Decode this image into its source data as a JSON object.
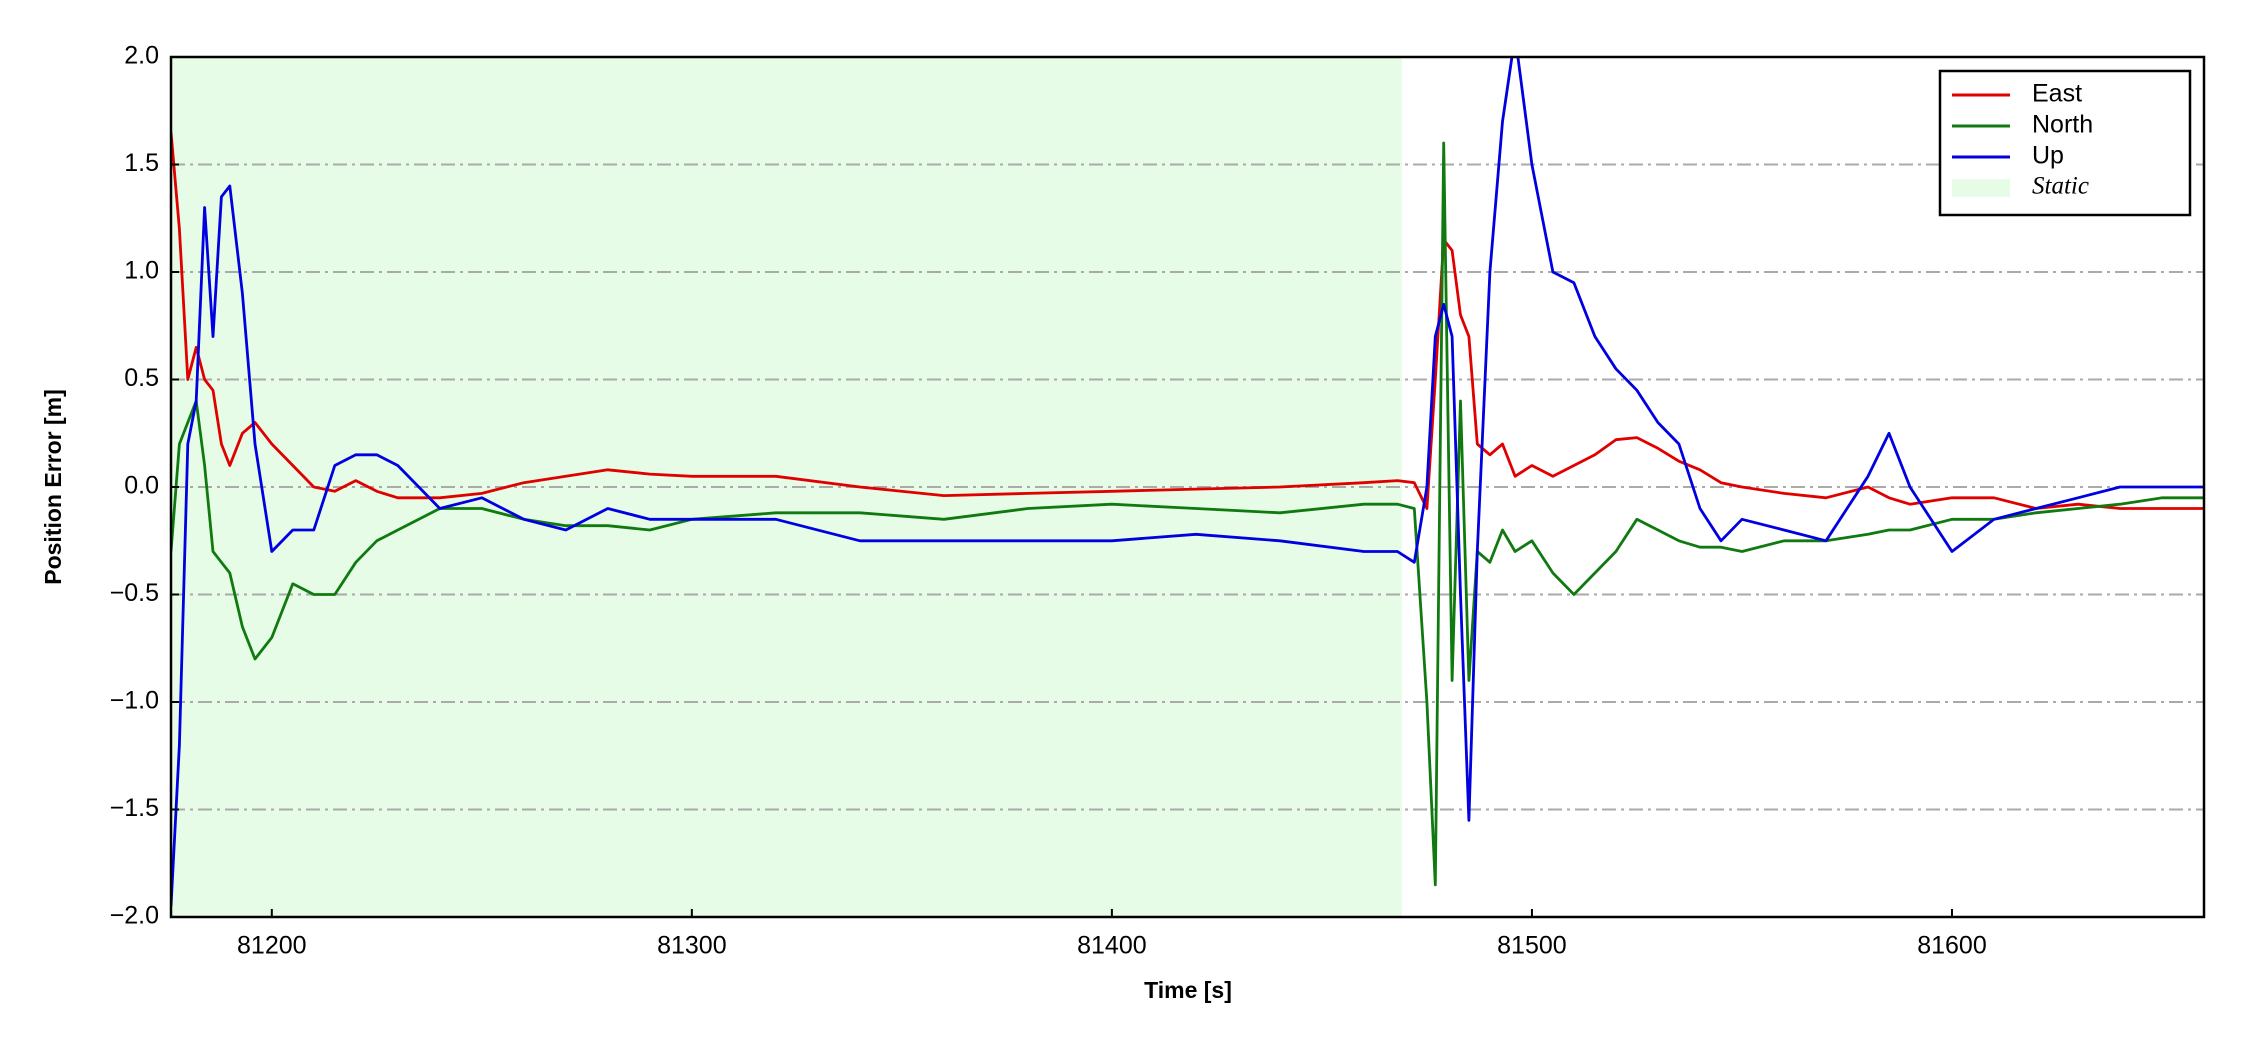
{
  "chart_data": {
    "type": "line",
    "xlabel": "Time [s]",
    "ylabel": "Position Error [m]",
    "x": [
      81176,
      81178,
      81180,
      81182,
      81184,
      81186,
      81188,
      81190,
      81193,
      81196,
      81200,
      81205,
      81210,
      81215,
      81220,
      81225,
      81230,
      81240,
      81250,
      81260,
      81270,
      81280,
      81290,
      81300,
      81320,
      81340,
      81360,
      81380,
      81400,
      81420,
      81440,
      81460,
      81468,
      81472,
      81475,
      81477,
      81479,
      81481,
      81483,
      81485,
      81487,
      81490,
      81493,
      81496,
      81500,
      81505,
      81510,
      81515,
      81520,
      81525,
      81530,
      81535,
      81540,
      81545,
      81550,
      81560,
      81570,
      81580,
      81585,
      81590,
      81600,
      81610,
      81620,
      81630,
      81640,
      81650,
      81660
    ],
    "series": [
      {
        "name": "East",
        "color": "#e00000",
        "values": [
          1.65,
          1.2,
          0.5,
          0.65,
          0.5,
          0.45,
          0.2,
          0.1,
          0.25,
          0.3,
          0.2,
          0.1,
          0.0,
          -0.02,
          0.03,
          -0.02,
          -0.05,
          -0.05,
          -0.03,
          0.02,
          0.05,
          0.08,
          0.06,
          0.05,
          0.05,
          0.0,
          -0.04,
          -0.03,
          -0.02,
          -0.01,
          0.0,
          0.02,
          0.03,
          0.02,
          -0.1,
          0.5,
          1.15,
          1.1,
          0.8,
          0.7,
          0.2,
          0.15,
          0.2,
          0.05,
          0.1,
          0.05,
          0.1,
          0.15,
          0.22,
          0.23,
          0.18,
          0.12,
          0.08,
          0.02,
          0.0,
          -0.03,
          -0.05,
          0.0,
          -0.05,
          -0.08,
          -0.05,
          -0.05,
          -0.1,
          -0.08,
          -0.1,
          -0.1,
          -0.1
        ]
      },
      {
        "name": "North",
        "color": "#107a10",
        "values": [
          -0.3,
          0.2,
          0.3,
          0.4,
          0.1,
          -0.3,
          -0.35,
          -0.4,
          -0.65,
          -0.8,
          -0.7,
          -0.45,
          -0.5,
          -0.5,
          -0.35,
          -0.25,
          -0.2,
          -0.1,
          -0.1,
          -0.15,
          -0.18,
          -0.18,
          -0.2,
          -0.15,
          -0.12,
          -0.12,
          -0.15,
          -0.1,
          -0.08,
          -0.1,
          -0.12,
          -0.08,
          -0.08,
          -0.1,
          -1.0,
          -1.85,
          1.6,
          -0.9,
          0.4,
          -0.9,
          -0.3,
          -0.35,
          -0.2,
          -0.3,
          -0.25,
          -0.4,
          -0.5,
          -0.4,
          -0.3,
          -0.15,
          -0.2,
          -0.25,
          -0.28,
          -0.28,
          -0.3,
          -0.25,
          -0.25,
          -0.22,
          -0.2,
          -0.2,
          -0.15,
          -0.15,
          -0.12,
          -0.1,
          -0.08,
          -0.05,
          -0.05
        ]
      },
      {
        "name": "Up",
        "color": "#0000e0",
        "values": [
          -1.95,
          -1.2,
          0.2,
          0.4,
          1.3,
          0.7,
          1.35,
          1.4,
          0.9,
          0.2,
          -0.3,
          -0.2,
          -0.2,
          0.1,
          0.15,
          0.15,
          0.1,
          -0.1,
          -0.05,
          -0.15,
          -0.2,
          -0.1,
          -0.15,
          -0.15,
          -0.15,
          -0.25,
          -0.25,
          -0.25,
          -0.25,
          -0.22,
          -0.25,
          -0.3,
          -0.3,
          -0.35,
          0.0,
          0.7,
          0.85,
          0.7,
          -0.5,
          -1.55,
          -0.3,
          1.0,
          1.7,
          2.1,
          1.5,
          1.0,
          0.95,
          0.7,
          0.55,
          0.45,
          0.3,
          0.2,
          -0.1,
          -0.25,
          -0.15,
          -0.2,
          -0.25,
          0.05,
          0.25,
          0.0,
          -0.3,
          -0.15,
          -0.1,
          -0.05,
          0.0,
          0.0,
          0.0
        ]
      }
    ],
    "spans": [
      {
        "name": "Static",
        "start": 81176,
        "end": 81469,
        "color": "#e6fce6"
      }
    ],
    "xlim": [
      81176,
      81660
    ],
    "xticks": [
      81200,
      81300,
      81400,
      81500,
      81600
    ],
    "ylim": [
      -2,
      2
    ],
    "yticks": [
      {
        "value": -2,
        "label": "−2.0"
      },
      {
        "value": -1.5,
        "label": "−1.5"
      },
      {
        "value": -1,
        "label": "−1.0"
      },
      {
        "value": -0.5,
        "label": "−0.5"
      },
      {
        "value": 0,
        "label": "0.0"
      },
      0.5,
      {
        "value": 1,
        "label": "1.0"
      },
      1.5,
      {
        "value": 2,
        "label": "2.0"
      }
    ],
    "grid": "y",
    "legend": "upper right"
  }
}
